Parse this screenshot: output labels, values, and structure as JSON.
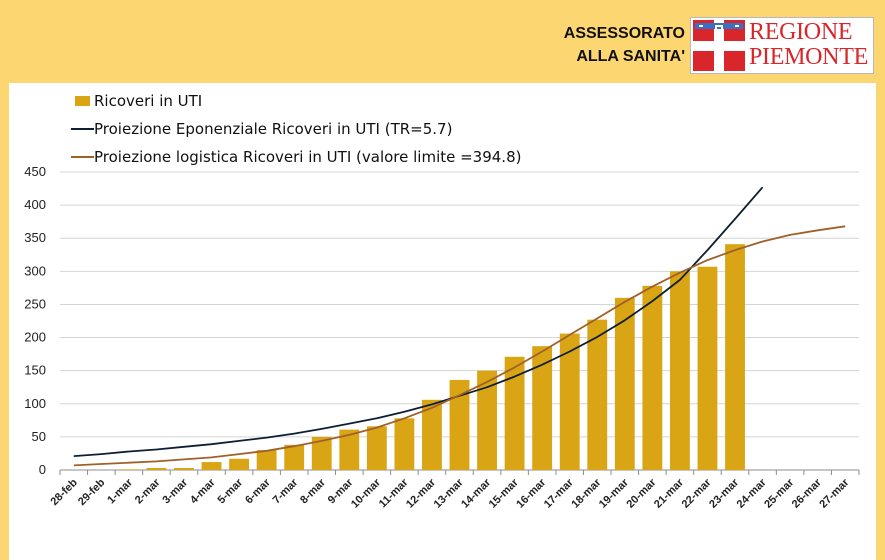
{
  "header": {
    "line1": "ASSESSORATO",
    "line2": "ALLA SANITA'",
    "logo_line1": "REGIONE",
    "logo_line2": "PIEMONTE"
  },
  "colors": {
    "page_background": "#fbd671",
    "bars": "#d9a514",
    "exponential_line": "#0f1f33",
    "logistic_line": "#a0602a",
    "logo_red": "#d8262b"
  },
  "chart_data": {
    "type": "bar",
    "title": "",
    "xlabel": "",
    "ylabel": "",
    "ylim": [
      0,
      450
    ],
    "yticks": [
      0,
      50,
      100,
      150,
      200,
      250,
      300,
      350,
      400,
      450
    ],
    "grid": true,
    "legend_position": "top-left",
    "categories": [
      "28-feb",
      "29-feb",
      "1-mar",
      "2-mar",
      "3-mar",
      "4-mar",
      "5-mar",
      "6-mar",
      "7-mar",
      "8-mar",
      "9-mar",
      "10-mar",
      "11-mar",
      "12-mar",
      "13-mar",
      "14-mar",
      "15-mar",
      "16-mar",
      "17-mar",
      "18-mar",
      "19-mar",
      "20-mar",
      "21-mar",
      "22-mar",
      "23-mar",
      "24-mar",
      "25-mar",
      "26-mar",
      "27-mar"
    ],
    "series": [
      {
        "name": "Ricoveri in UTI",
        "type": "bar",
        "values": [
          0,
          0,
          1,
          3,
          3,
          12,
          17,
          30,
          38,
          50,
          61,
          66,
          78,
          106,
          136,
          150,
          171,
          187,
          206,
          227,
          260,
          278,
          300,
          307,
          341,
          null,
          null,
          null,
          null
        ]
      },
      {
        "name": "Proiezione Eponenziale Ricoveri in UTI  (TR=5.7)",
        "type": "line",
        "values": [
          21,
          24,
          28,
          31,
          35,
          39,
          44,
          49,
          55,
          62,
          70,
          78,
          88,
          99,
          112,
          125,
          141,
          159,
          179,
          201,
          226,
          255,
          287,
          332,
          379,
          427,
          null,
          null,
          null
        ]
      },
      {
        "name": "Proiezione logistica Ricoveri in UTI  (valore limite =394.8)",
        "type": "line",
        "values": [
          7,
          9,
          11,
          13,
          16,
          19,
          24,
          29,
          36,
          44,
          53,
          64,
          78,
          94,
          113,
          133,
          155,
          179,
          204,
          229,
          254,
          277,
          298,
          317,
          332,
          345,
          355,
          362,
          368
        ]
      }
    ]
  }
}
